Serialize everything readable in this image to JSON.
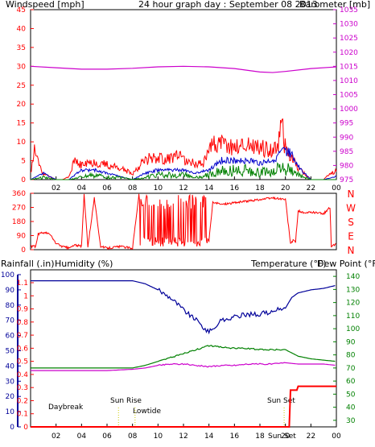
{
  "colors": {
    "wind": "#ff0000",
    "wind_avg": "#0000cc",
    "wind_dark": "#008000",
    "baro": "#cc00cc",
    "humidity": "#000099",
    "temperature": "#008000",
    "dewpoint": "#cc00cc",
    "rain": "#ff0000",
    "sun": "#cccc00",
    "axis": "#000000"
  },
  "header": {
    "wind_label": "Windspeed [mph]",
    "title": "24 hour graph day : September 08 2013",
    "baro_label": "Barometer [mb]"
  },
  "bottom_header": {
    "rain_label": "Rainfall (.in)",
    "humidity_label": "Humidity (%)",
    "temp_label": "Temperature (°F)",
    "dew_label": "Dew Point (°F)"
  },
  "annotations": {
    "daybreak_top": "Daybreak",
    "sunrise": "Sun Rise",
    "lowtide": "Lowtide",
    "sunset": "Sun Set",
    "sunset_bottom": "Sun Set"
  },
  "direction_labels": [
    "N",
    "W",
    "S",
    "E",
    "N"
  ],
  "chart_data": [
    {
      "type": "line",
      "name": "wind-baro",
      "x_ticks": [
        "02",
        "04",
        "06",
        "08",
        "10",
        "12",
        "14",
        "16",
        "18",
        "20",
        "22",
        "00"
      ],
      "ylim_left": [
        0,
        45
      ],
      "yticks_left": [
        0,
        5,
        10,
        15,
        20,
        25,
        30,
        35,
        40,
        45
      ],
      "ylim_right": [
        975,
        1035
      ],
      "yticks_right": [
        975,
        980,
        985,
        990,
        995,
        1000,
        1005,
        1010,
        1015,
        1020,
        1025,
        1030,
        1035
      ],
      "series": [
        {
          "key": "gust",
          "color": "red",
          "x": [
            0,
            0.3,
            0.6,
            1.0,
            1.5,
            2.0,
            2.5,
            3.0,
            3.4,
            4.0,
            5.0,
            6.0,
            7.0,
            8.0,
            8.8,
            9.5,
            10.5,
            11.5,
            12.5,
            13.5,
            14.0,
            15.0,
            16.0,
            17.0,
            18.0,
            19.0,
            19.5,
            19.7,
            19.9,
            20.2,
            20.6,
            21.0,
            22.0,
            23.0,
            23.5,
            24.0
          ],
          "y": [
            2,
            10,
            6,
            2,
            1,
            0,
            0,
            1,
            6,
            5,
            6,
            5,
            4,
            2,
            6,
            8,
            7,
            8,
            6,
            5,
            12,
            12,
            11,
            12,
            11,
            10,
            13,
            25,
            12,
            8,
            7,
            4,
            0,
            0,
            2,
            3
          ]
        },
        {
          "key": "average",
          "color": "blue",
          "x": [
            0,
            1,
            2,
            3,
            4,
            5,
            6,
            7,
            8,
            9,
            10,
            11,
            12,
            13,
            14,
            15,
            16,
            17,
            18,
            19,
            20,
            20.5,
            21,
            22,
            23,
            24
          ],
          "y": [
            0,
            2,
            0,
            0,
            3,
            3,
            2,
            1,
            0,
            2,
            3,
            3,
            3,
            2,
            3,
            6,
            6,
            6,
            5,
            6,
            9,
            8,
            4,
            0,
            0,
            1
          ]
        },
        {
          "key": "speed",
          "color": "green",
          "x": [
            0,
            1,
            2,
            3,
            4,
            5,
            6,
            7,
            8,
            9,
            10,
            11,
            12,
            13,
            14,
            15,
            16,
            17,
            18,
            19,
            20,
            21,
            22,
            23,
            24
          ],
          "y": [
            0,
            1,
            0,
            0,
            1,
            2,
            1,
            1,
            0,
            1,
            2,
            2,
            2,
            1,
            2,
            4,
            4,
            4,
            3,
            4,
            5,
            2,
            0,
            0,
            0
          ]
        },
        {
          "key": "barometer",
          "color": "magenta",
          "axis": "right",
          "x": [
            0,
            2,
            4,
            6,
            8,
            10,
            12,
            14,
            16,
            18,
            19,
            20,
            22,
            24
          ],
          "y": [
            1015,
            1014.5,
            1014,
            1014,
            1014.3,
            1014.8,
            1015,
            1014.8,
            1014.2,
            1013,
            1012.8,
            1013.2,
            1014.2,
            1014.8
          ]
        }
      ]
    },
    {
      "type": "line",
      "name": "wind-direction",
      "x_ticks": [
        "02",
        "04",
        "06",
        "08",
        "10",
        "12",
        "14",
        "16",
        "18",
        "20",
        "22",
        "00"
      ],
      "ylim": [
        0,
        360
      ],
      "yticks": [
        0,
        90,
        180,
        270,
        360
      ],
      "series": [
        {
          "key": "direction",
          "color": "red",
          "x": [
            0,
            0.4,
            0.6,
            1.0,
            1.5,
            2.0,
            2.5,
            3.0,
            3.5,
            4.0,
            4.2,
            4.5,
            5.0,
            5.5,
            6.0,
            7.0,
            8.0,
            8.5,
            9.0,
            9.5,
            10.0,
            10.5,
            11.0,
            11.5,
            12.0,
            12.5,
            13.0,
            13.5,
            14.0,
            14.3,
            15.0,
            16.0,
            17.0,
            18.0,
            19.0,
            20.0,
            20.4,
            20.6,
            20.8,
            21.0,
            21.5,
            22.0,
            23.0,
            23.5,
            23.6,
            24.0
          ],
          "y": [
            20,
            20,
            100,
            110,
            100,
            40,
            20,
            10,
            30,
            20,
            350,
            20,
            330,
            20,
            10,
            20,
            10,
            350,
            30,
            340,
            60,
            300,
            80,
            330,
            40,
            320,
            60,
            280,
            60,
            300,
            290,
            300,
            310,
            320,
            330,
            320,
            40,
            60,
            50,
            250,
            230,
            240,
            230,
            270,
            20,
            40
          ]
        }
      ]
    },
    {
      "type": "line",
      "name": "rain-humidity-temp-dew",
      "x_ticks": [
        "02",
        "04",
        "06",
        "08",
        "10",
        "12",
        "14",
        "16",
        "18",
        "20",
        "22",
        "00"
      ],
      "ylim_left_humidity": [
        0,
        100
      ],
      "yticks_humidity": [
        0,
        10,
        20,
        30,
        40,
        50,
        60,
        70,
        80,
        90,
        100
      ],
      "ylim_left_rain": [
        0,
        1.1
      ],
      "yticks_rain": [
        0,
        0.1,
        0.2,
        0.3,
        0.4,
        0.5,
        0.6,
        0.7,
        0.8,
        0.9,
        1,
        1.1
      ],
      "ylim_right": [
        25,
        145
      ],
      "yticks_right": [
        30,
        40,
        50,
        60,
        70,
        80,
        90,
        100,
        110,
        120,
        130,
        140
      ],
      "series": [
        {
          "key": "humidity",
          "color": "darkblue",
          "axis": "humidity",
          "x": [
            0,
            2,
            4,
            6,
            8,
            9,
            10,
            11,
            12,
            13,
            14,
            15,
            16,
            17,
            18,
            19,
            20,
            20.5,
            21,
            22,
            23,
            24
          ],
          "y": [
            96,
            96,
            96,
            96,
            96,
            94,
            90,
            85,
            77,
            70,
            62,
            70,
            72,
            74,
            74,
            76,
            78,
            85,
            88,
            90,
            91,
            93
          ]
        },
        {
          "key": "temperature",
          "color": "green",
          "axis": "right",
          "x": [
            0,
            2,
            4,
            6,
            8,
            9,
            10,
            11,
            12,
            13,
            14,
            15,
            16,
            17,
            18,
            19,
            20,
            21,
            22,
            23,
            24
          ],
          "y": [
            70,
            70,
            70,
            70,
            70,
            72,
            75,
            78,
            81,
            84,
            87,
            86,
            85,
            85,
            84,
            84,
            84,
            79,
            77,
            76,
            75
          ]
        },
        {
          "key": "dew_point",
          "color": "magenta",
          "axis": "right",
          "x": [
            0,
            2,
            4,
            6,
            8,
            9,
            10,
            11,
            12,
            13,
            14,
            15,
            16,
            17,
            18,
            19,
            20,
            21,
            22,
            23,
            24
          ],
          "y": [
            68,
            68,
            68,
            68,
            69,
            70,
            72,
            73,
            73,
            72,
            71,
            72,
            72,
            73,
            73,
            73,
            74,
            73,
            73,
            73,
            72
          ]
        },
        {
          "key": "rainfall",
          "color": "red",
          "axis": "rain",
          "x": [
            0,
            20.3,
            20.4,
            20.9,
            21.0,
            24
          ],
          "y": [
            0,
            0,
            0.28,
            0.28,
            0.31,
            0.31
          ]
        }
      ]
    }
  ]
}
